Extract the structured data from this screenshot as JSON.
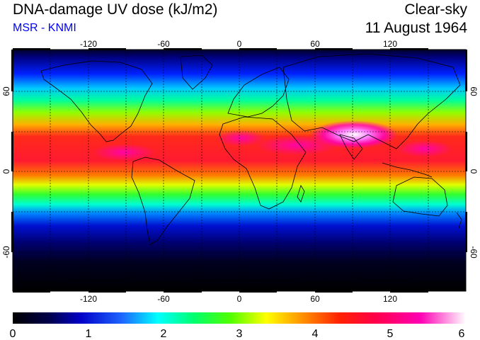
{
  "header": {
    "title": "DNA-damage UV dose (kJ/m2)",
    "subtitle": "MSR - KNMI",
    "condition": "Clear-sky",
    "date": "11 August 1964"
  },
  "colors": {
    "subtitle": "#0000ff",
    "scale": [
      "#000000",
      "#00004a",
      "#0000c8",
      "#1e64ff",
      "#00ffff",
      "#00ff6e",
      "#50ff00",
      "#ffff00",
      "#ff9000",
      "#ff2200",
      "#ff0048",
      "#ff00b4",
      "#ffffff"
    ]
  },
  "map": {
    "projection": "equirectangular",
    "lon_ticks": [
      "-120",
      "-60",
      "0",
      "60",
      "120"
    ],
    "lat_ticks": [
      "60",
      "0",
      "-60"
    ],
    "gridlines": "dashed every 30 degrees"
  },
  "colorbar": {
    "tick_labels": [
      "0",
      "1",
      "2",
      "3",
      "4",
      "5",
      "6"
    ]
  }
}
